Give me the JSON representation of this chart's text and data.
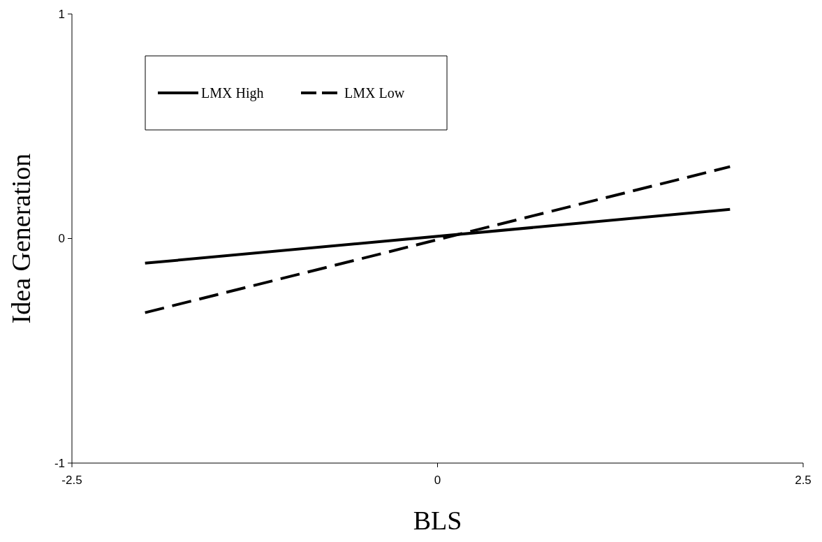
{
  "chart_data": {
    "type": "line",
    "xlabel": "BLS",
    "ylabel": "Idea Generation",
    "x": [
      -2,
      2
    ],
    "series": [
      {
        "name": "LMX High",
        "color": "#000000",
        "values": [
          -0.11,
          0.13
        ],
        "line_style": "solid"
      },
      {
        "name": "LMX Low",
        "color": "#000000",
        "values": [
          -0.33,
          0.32
        ],
        "line_style": "dashed"
      }
    ],
    "xlim": [
      -2.5,
      2.5
    ],
    "xticks": [
      -2.5,
      0,
      2.5
    ],
    "ylim": [
      -1,
      1
    ],
    "yticks": [
      -1,
      0,
      1
    ],
    "grid": false,
    "legend": "top left",
    "marker": "none"
  }
}
